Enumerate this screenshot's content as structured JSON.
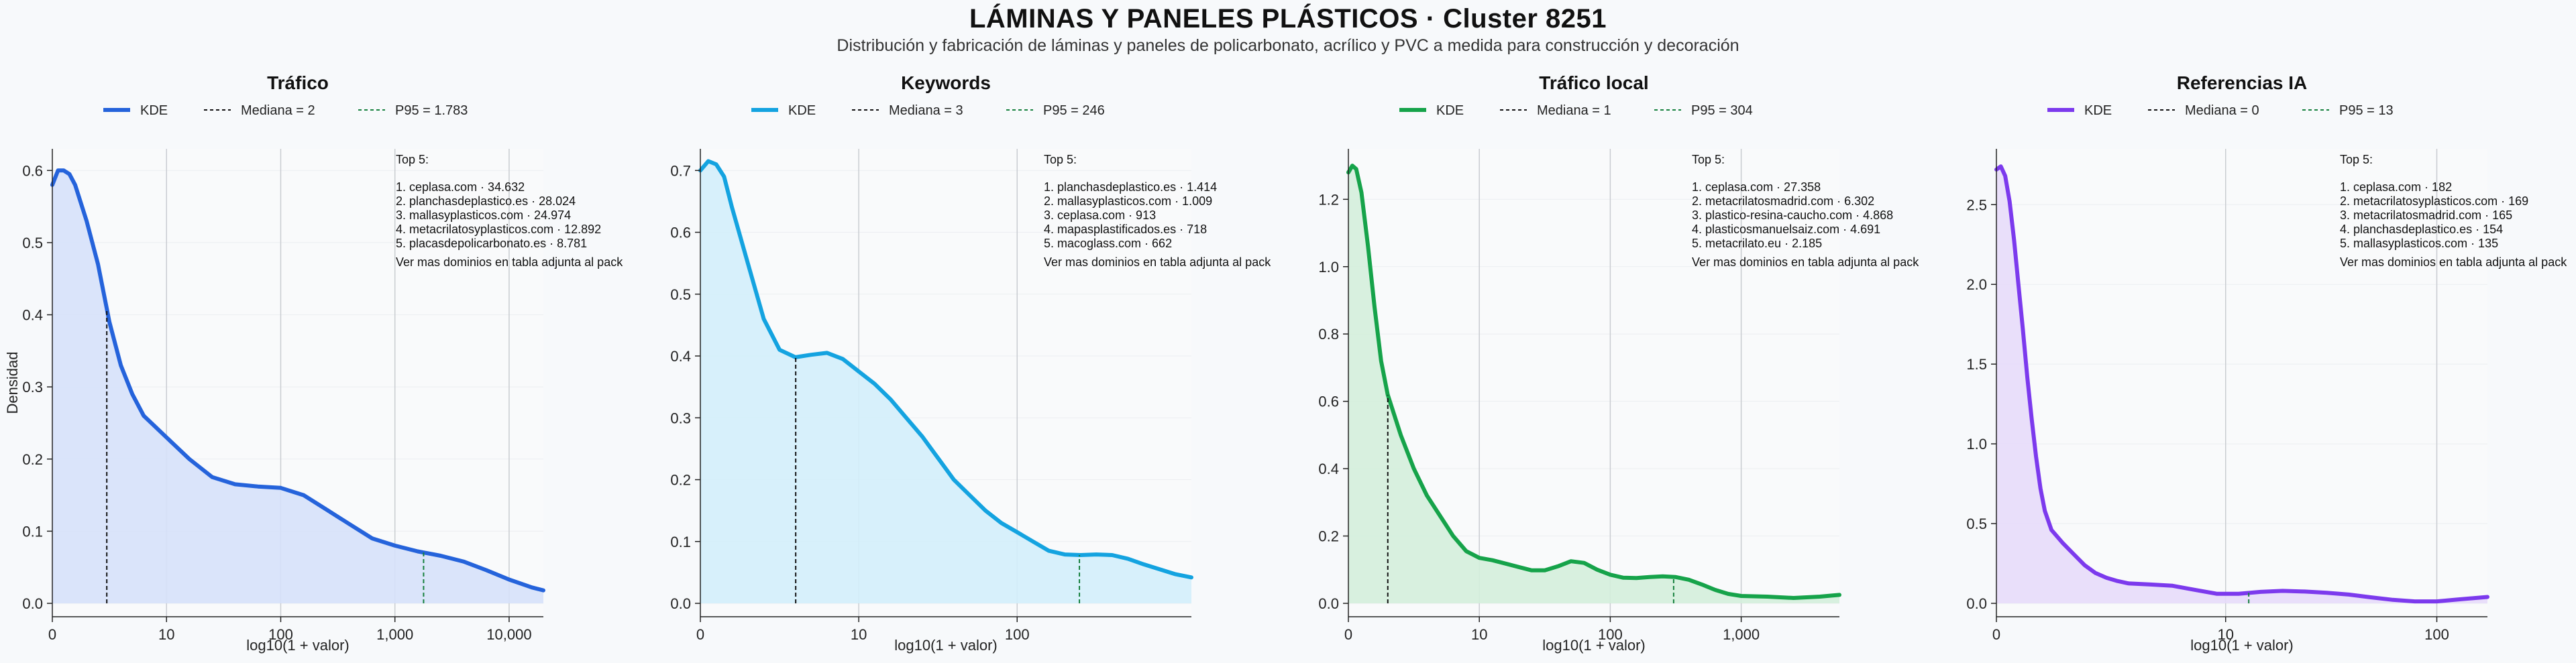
{
  "title": "LÁMINAS Y PANELES PLÁSTICOS · Cluster 8251",
  "subtitle": "Distribución y fabricación de láminas y paneles de policarbonato, acrílico y PVC a medida para construcción y decoración",
  "chart_data": [
    {
      "type": "area",
      "title": "Tráfico",
      "xlabel": "log10(1 + valor)",
      "ylabel": "Densidad",
      "x_scale": "log10(1+x)",
      "xlim": [
        0,
        4.3
      ],
      "ylim": [
        0,
        0.63
      ],
      "x_ticks": [
        0,
        1,
        2,
        3,
        4
      ],
      "x_tick_labels": [
        "0",
        "10",
        "100",
        "1,000",
        "10,000"
      ],
      "y_ticks": [
        0,
        0.1,
        0.2,
        0.3,
        0.4,
        0.5,
        0.6
      ],
      "y_tick_labels": [
        "0.0",
        "0.1",
        "0.2",
        "0.3",
        "0.4",
        "0.5",
        "0.6"
      ],
      "color": "#2563db",
      "fill": "#d6e1fa",
      "legend": [
        "KDE",
        "Mediana = 2",
        "P95 = 1.783"
      ],
      "median_x": 0.477,
      "p95_x": 3.251,
      "curve": [
        [
          0,
          0.58
        ],
        [
          0.05,
          0.6
        ],
        [
          0.1,
          0.6
        ],
        [
          0.15,
          0.595
        ],
        [
          0.2,
          0.58
        ],
        [
          0.3,
          0.53
        ],
        [
          0.4,
          0.47
        ],
        [
          0.5,
          0.39
        ],
        [
          0.6,
          0.33
        ],
        [
          0.7,
          0.29
        ],
        [
          0.8,
          0.26
        ],
        [
          0.9,
          0.245
        ],
        [
          1.0,
          0.23
        ],
        [
          1.2,
          0.2
        ],
        [
          1.4,
          0.175
        ],
        [
          1.6,
          0.165
        ],
        [
          1.8,
          0.162
        ],
        [
          2.0,
          0.16
        ],
        [
          2.2,
          0.15
        ],
        [
          2.4,
          0.13
        ],
        [
          2.6,
          0.11
        ],
        [
          2.8,
          0.09
        ],
        [
          3.0,
          0.08
        ],
        [
          3.2,
          0.072
        ],
        [
          3.4,
          0.066
        ],
        [
          3.6,
          0.058
        ],
        [
          3.8,
          0.046
        ],
        [
          4.0,
          0.033
        ],
        [
          4.2,
          0.022
        ],
        [
          4.3,
          0.018
        ]
      ],
      "top5_title": "Top 5:",
      "top5": [
        "1. ceplasa.com · 34.632",
        "2. planchasdeplastico.es · 28.024",
        "3. mallasyplasticos.com · 24.974",
        "4. metacrilatosyplasticos.com · 12.892",
        "5. placasdepolicarbonato.es · 8.781"
      ],
      "more_note": "Ver mas dominios en tabla adjunta al pack"
    },
    {
      "type": "area",
      "title": "Keywords",
      "xlabel": "log10(1 + valor)",
      "ylabel": "",
      "x_scale": "log10(1+x)",
      "xlim": [
        0,
        3.1
      ],
      "ylim": [
        0,
        0.735
      ],
      "x_ticks": [
        0,
        1,
        2
      ],
      "x_tick_labels": [
        "0",
        "10",
        "100"
      ],
      "y_ticks": [
        0,
        0.1,
        0.2,
        0.3,
        0.4,
        0.5,
        0.6,
        0.7
      ],
      "y_tick_labels": [
        "0.0",
        "0.1",
        "0.2",
        "0.3",
        "0.4",
        "0.5",
        "0.6",
        "0.7"
      ],
      "color": "#14a3e0",
      "fill": "#d3eefb",
      "legend": [
        "KDE",
        "Mediana = 3",
        "P95 = 246"
      ],
      "median_x": 0.602,
      "p95_x": 2.393,
      "curve": [
        [
          0,
          0.7
        ],
        [
          0.05,
          0.715
        ],
        [
          0.1,
          0.71
        ],
        [
          0.15,
          0.69
        ],
        [
          0.2,
          0.64
        ],
        [
          0.3,
          0.55
        ],
        [
          0.4,
          0.46
        ],
        [
          0.5,
          0.41
        ],
        [
          0.6,
          0.398
        ],
        [
          0.7,
          0.402
        ],
        [
          0.8,
          0.405
        ],
        [
          0.9,
          0.395
        ],
        [
          1.0,
          0.375
        ],
        [
          1.1,
          0.355
        ],
        [
          1.2,
          0.33
        ],
        [
          1.3,
          0.3
        ],
        [
          1.4,
          0.27
        ],
        [
          1.5,
          0.235
        ],
        [
          1.6,
          0.2
        ],
        [
          1.7,
          0.175
        ],
        [
          1.8,
          0.15
        ],
        [
          1.9,
          0.13
        ],
        [
          2.0,
          0.115
        ],
        [
          2.1,
          0.1
        ],
        [
          2.2,
          0.085
        ],
        [
          2.3,
          0.079
        ],
        [
          2.4,
          0.078
        ],
        [
          2.5,
          0.079
        ],
        [
          2.6,
          0.078
        ],
        [
          2.7,
          0.072
        ],
        [
          2.8,
          0.063
        ],
        [
          2.9,
          0.055
        ],
        [
          3.0,
          0.047
        ],
        [
          3.1,
          0.042
        ]
      ],
      "top5_title": "Top 5:",
      "top5": [
        "1. planchasdeplastico.es · 1.414",
        "2. mallasyplasticos.com · 1.009",
        "3. ceplasa.com · 913",
        "4. mapasplastificados.es · 718",
        "5. macoglass.com · 662"
      ],
      "more_note": "Ver mas dominios en tabla adjunta al pack"
    },
    {
      "type": "area",
      "title": "Tráfico local",
      "xlabel": "log10(1 + valor)",
      "ylabel": "",
      "x_scale": "log10(1+x)",
      "xlim": [
        0,
        3.75
      ],
      "ylim": [
        0,
        1.35
      ],
      "x_ticks": [
        0,
        1,
        2,
        3
      ],
      "x_tick_labels": [
        "0",
        "10",
        "100",
        "1,000"
      ],
      "y_ticks": [
        0,
        0.2,
        0.4,
        0.6,
        0.8,
        1.0,
        1.2
      ],
      "y_tick_labels": [
        "0.0",
        "0.2",
        "0.4",
        "0.6",
        "0.8",
        "1.0",
        "1.2"
      ],
      "color": "#16a34a",
      "fill": "#d4eedb",
      "legend": [
        "KDE",
        "Mediana = 1",
        "P95 = 304"
      ],
      "median_x": 0.301,
      "p95_x": 2.484,
      "curve": [
        [
          0,
          1.28
        ],
        [
          0.03,
          1.3
        ],
        [
          0.06,
          1.29
        ],
        [
          0.1,
          1.22
        ],
        [
          0.15,
          1.06
        ],
        [
          0.2,
          0.88
        ],
        [
          0.25,
          0.72
        ],
        [
          0.3,
          0.62
        ],
        [
          0.4,
          0.5
        ],
        [
          0.5,
          0.4
        ],
        [
          0.6,
          0.32
        ],
        [
          0.7,
          0.26
        ],
        [
          0.8,
          0.2
        ],
        [
          0.9,
          0.155
        ],
        [
          1.0,
          0.135
        ],
        [
          1.1,
          0.128
        ],
        [
          1.2,
          0.118
        ],
        [
          1.3,
          0.108
        ],
        [
          1.4,
          0.098
        ],
        [
          1.5,
          0.098
        ],
        [
          1.6,
          0.11
        ],
        [
          1.7,
          0.125
        ],
        [
          1.8,
          0.12
        ],
        [
          1.9,
          0.1
        ],
        [
          2.0,
          0.085
        ],
        [
          2.1,
          0.076
        ],
        [
          2.2,
          0.075
        ],
        [
          2.3,
          0.078
        ],
        [
          2.4,
          0.08
        ],
        [
          2.5,
          0.078
        ],
        [
          2.6,
          0.07
        ],
        [
          2.7,
          0.056
        ],
        [
          2.8,
          0.04
        ],
        [
          2.9,
          0.028
        ],
        [
          3.0,
          0.022
        ],
        [
          3.2,
          0.02
        ],
        [
          3.4,
          0.016
        ],
        [
          3.6,
          0.02
        ],
        [
          3.75,
          0.025
        ]
      ],
      "top5_title": "Top 5:",
      "top5": [
        "1. ceplasa.com · 27.358",
        "2. metacrilatosmadrid.com · 6.302",
        "3. plastico-resina-caucho.com · 4.868",
        "4. plasticosmanuelsaiz.com · 4.691",
        "5. metacrilato.eu · 2.185"
      ],
      "more_note": "Ver mas dominios en tabla adjunta al pack"
    },
    {
      "type": "area",
      "title": "Referencias IA",
      "xlabel": "log10(1 + valor)",
      "ylabel": "",
      "x_scale": "log10(1+x)",
      "xlim": [
        0,
        2.23
      ],
      "ylim": [
        0,
        2.85
      ],
      "x_ticks": [
        0,
        1.041,
        2
      ],
      "x_tick_labels": [
        "0",
        "10",
        "100"
      ],
      "y_ticks": [
        0,
        0.5,
        1.0,
        1.5,
        2.0,
        2.5
      ],
      "y_tick_labels": [
        "0.0",
        "0.5",
        "1.0",
        "1.5",
        "2.0",
        "2.5"
      ],
      "color": "#7c3aed",
      "fill": "#e7dbfa",
      "legend": [
        "KDE",
        "Mediana = 0",
        "P95 = 13"
      ],
      "median_x": 0,
      "p95_x": 1.146,
      "curve": [
        [
          0,
          2.72
        ],
        [
          0.02,
          2.74
        ],
        [
          0.04,
          2.68
        ],
        [
          0.06,
          2.52
        ],
        [
          0.08,
          2.28
        ],
        [
          0.1,
          2.0
        ],
        [
          0.12,
          1.72
        ],
        [
          0.14,
          1.42
        ],
        [
          0.16,
          1.16
        ],
        [
          0.18,
          0.92
        ],
        [
          0.2,
          0.72
        ],
        [
          0.22,
          0.58
        ],
        [
          0.25,
          0.46
        ],
        [
          0.3,
          0.38
        ],
        [
          0.35,
          0.31
        ],
        [
          0.4,
          0.24
        ],
        [
          0.45,
          0.19
        ],
        [
          0.5,
          0.16
        ],
        [
          0.55,
          0.14
        ],
        [
          0.6,
          0.125
        ],
        [
          0.7,
          0.118
        ],
        [
          0.8,
          0.11
        ],
        [
          0.9,
          0.085
        ],
        [
          1.0,
          0.06
        ],
        [
          1.1,
          0.06
        ],
        [
          1.2,
          0.072
        ],
        [
          1.3,
          0.078
        ],
        [
          1.4,
          0.074
        ],
        [
          1.5,
          0.066
        ],
        [
          1.6,
          0.055
        ],
        [
          1.7,
          0.038
        ],
        [
          1.8,
          0.022
        ],
        [
          1.9,
          0.012
        ],
        [
          2.0,
          0.012
        ],
        [
          2.1,
          0.025
        ],
        [
          2.23,
          0.04
        ]
      ],
      "top5_title": "Top 5:",
      "top5": [
        "1. ceplasa.com · 182",
        "2. metacrilatosyplasticos.com · 169",
        "3. metacrilatosmadrid.com · 165",
        "4. planchasdeplastico.es · 154",
        "5. mallasyplasticos.com · 135"
      ],
      "more_note": "Ver mas dominios en tabla adjunta al pack"
    }
  ]
}
